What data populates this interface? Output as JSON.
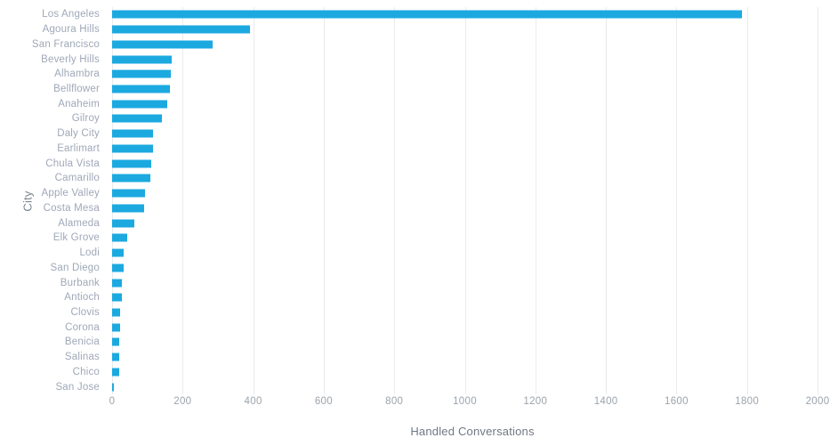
{
  "chart_data": {
    "type": "bar",
    "orientation": "horizontal",
    "title": "",
    "xlabel": "Handled Conversations",
    "ylabel": "City",
    "categories": [
      "Los Angeles",
      "Agoura Hills",
      "San Francisco",
      "Beverly Hills",
      "Alhambra",
      "Bellflower",
      "Anaheim",
      "Gilroy",
      "Daly City",
      "Earlimart",
      "Chula Vista",
      "Camarillo",
      "Apple Valley",
      "Costa Mesa",
      "Alameda",
      "Elk Grove",
      "Lodi",
      "San Diego",
      "Burbank",
      "Antioch",
      "Clovis",
      "Corona",
      "Benicia",
      "Salinas",
      "Chico",
      "San Jose"
    ],
    "values": [
      1785,
      392,
      286,
      168,
      166,
      165,
      156,
      142,
      117,
      116,
      111,
      108,
      93,
      90,
      63,
      43,
      34,
      33,
      29,
      27,
      23,
      22,
      21,
      19,
      19,
      4
    ],
    "xlim": [
      0,
      2000
    ],
    "x_ticks": [
      0,
      200,
      400,
      600,
      800,
      1000,
      1200,
      1400,
      1600,
      1800,
      2000
    ],
    "grid": "vertical-only",
    "legend": "none",
    "colors": {
      "bar": "#1ca9e0",
      "grid_line": "#e9ebee",
      "category_label": "#9fa8b8",
      "tick_label": "#9ba3ac",
      "x_axis_title": "#6e7984",
      "y_axis_title": "#7c858d",
      "background": "#ffffff"
    }
  }
}
